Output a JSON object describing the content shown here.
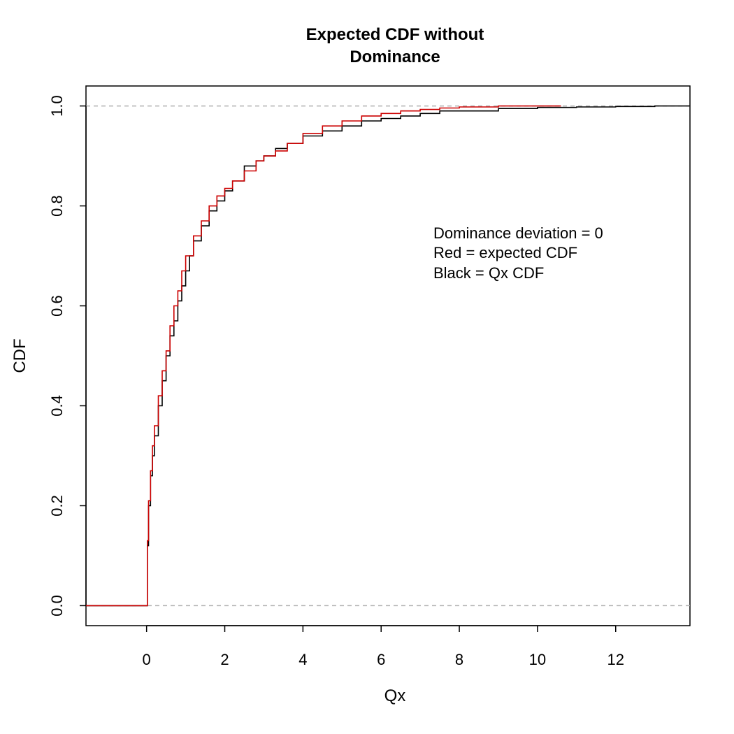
{
  "chart_data": {
    "type": "line",
    "title": "Expected CDF without\nDominance",
    "xlabel": "Qx",
    "ylabel": "CDF",
    "xlim": [
      -1.55,
      13.9
    ],
    "ylim": [
      -0.04,
      1.04
    ],
    "x_ticks": [
      0,
      2,
      4,
      6,
      8,
      10,
      12
    ],
    "x_tick_labels": [
      "0",
      "2",
      "4",
      "6",
      "8",
      "10",
      "12"
    ],
    "y_ticks": [
      0,
      0.2,
      0.4,
      0.6,
      0.8,
      1
    ],
    "y_tick_labels": [
      "0.0",
      "0.2",
      "0.4",
      "0.6",
      "0.8",
      "1.0"
    ],
    "reference_lines": [
      0,
      1
    ],
    "grid": false,
    "annotations": [
      "Dominance deviation = 0",
      "Red = expected CDF",
      "Black = Qx CDF"
    ],
    "series": [
      {
        "color": "#000000",
        "x": [
          -1.55,
          0,
          0.02,
          0.05,
          0.1,
          0.15,
          0.2,
          0.3,
          0.4,
          0.5,
          0.6,
          0.7,
          0.8,
          0.9,
          1.0,
          1.1,
          1.2,
          1.4,
          1.6,
          1.8,
          2.0,
          2.2,
          2.5,
          2.8,
          3.0,
          3.3,
          3.6,
          4.0,
          4.5,
          5.0,
          5.5,
          6.0,
          6.5,
          7.0,
          7.5,
          8.0,
          9.0,
          10.0,
          11.0,
          12.0,
          13.0,
          13.9
        ],
        "y": [
          0,
          0,
          0.12,
          0.2,
          0.26,
          0.3,
          0.34,
          0.4,
          0.45,
          0.5,
          0.54,
          0.57,
          0.61,
          0.64,
          0.67,
          0.7,
          0.73,
          0.76,
          0.79,
          0.81,
          0.83,
          0.85,
          0.88,
          0.89,
          0.9,
          0.915,
          0.925,
          0.94,
          0.95,
          0.96,
          0.97,
          0.975,
          0.98,
          0.985,
          0.99,
          0.99,
          0.995,
          0.997,
          0.998,
          0.999,
          1.0,
          1.0
        ]
      },
      {
        "color": "#cc0000",
        "x": [
          -1.55,
          0,
          0.02,
          0.05,
          0.1,
          0.15,
          0.2,
          0.3,
          0.4,
          0.5,
          0.6,
          0.7,
          0.8,
          0.9,
          1.0,
          1.2,
          1.4,
          1.6,
          1.8,
          2.0,
          2.2,
          2.5,
          2.8,
          3.0,
          3.3,
          3.6,
          4.0,
          4.5,
          5.0,
          5.5,
          6.0,
          6.5,
          7.0,
          7.5,
          8.0,
          9.0,
          10.0,
          10.6
        ],
        "y": [
          0,
          0,
          0.13,
          0.21,
          0.27,
          0.32,
          0.36,
          0.42,
          0.47,
          0.51,
          0.56,
          0.6,
          0.63,
          0.67,
          0.7,
          0.74,
          0.77,
          0.8,
          0.82,
          0.835,
          0.85,
          0.87,
          0.89,
          0.9,
          0.91,
          0.925,
          0.945,
          0.96,
          0.97,
          0.98,
          0.985,
          0.99,
          0.993,
          0.996,
          0.998,
          1.0,
          1.0,
          1.0
        ]
      }
    ]
  }
}
